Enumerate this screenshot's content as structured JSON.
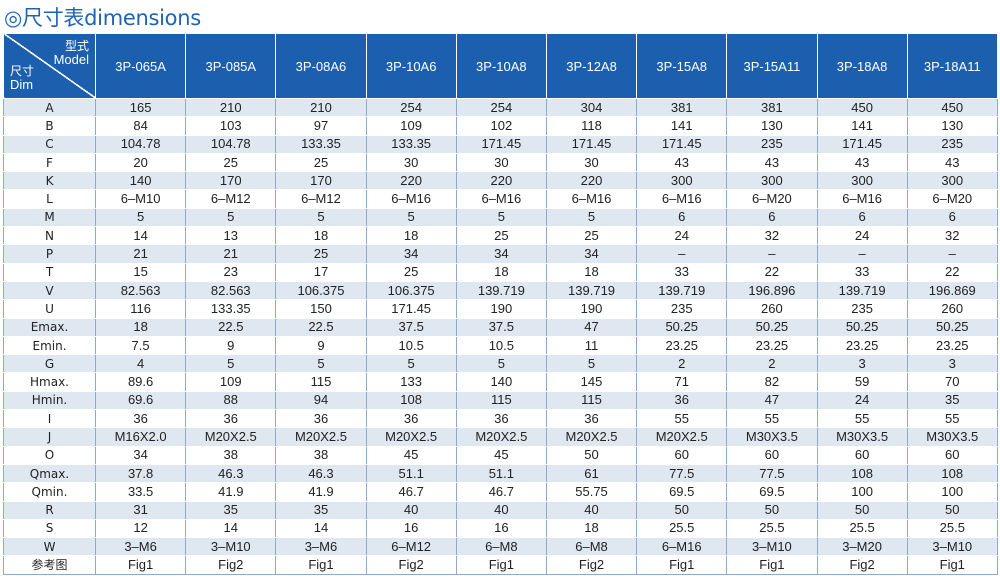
{
  "title": "◎尺寸表dimensions",
  "corner": {
    "model_zh": "型式",
    "model_en": "Model",
    "dim_zh": "尺寸",
    "dim_en": "Dim"
  },
  "models": [
    "3P-065A",
    "3P-085A",
    "3P-08A6",
    "3P-10A6",
    "3P-10A8",
    "3P-12A8",
    "3P-15A8",
    "3P-15A11",
    "3P-18A8",
    "3P-18A11"
  ],
  "rows": [
    {
      "label": "A",
      "values": [
        "165",
        "210",
        "210",
        "254",
        "254",
        "304",
        "381",
        "381",
        "450",
        "450"
      ]
    },
    {
      "label": "B",
      "values": [
        "84",
        "103",
        "97",
        "109",
        "102",
        "118",
        "141",
        "130",
        "141",
        "130"
      ]
    },
    {
      "label": "C",
      "values": [
        "104.78",
        "104.78",
        "133.35",
        "133.35",
        "171.45",
        "171.45",
        "171.45",
        "235",
        "171.45",
        "235"
      ]
    },
    {
      "label": "F",
      "values": [
        "20",
        "25",
        "25",
        "30",
        "30",
        "30",
        "43",
        "43",
        "43",
        "43"
      ]
    },
    {
      "label": "K",
      "values": [
        "140",
        "170",
        "170",
        "220",
        "220",
        "220",
        "300",
        "300",
        "300",
        "300"
      ]
    },
    {
      "label": "L",
      "values": [
        "6–M10",
        "6–M12",
        "6–M12",
        "6–M16",
        "6–M16",
        "6–M16",
        "6–M16",
        "6–M20",
        "6–M16",
        "6–M20"
      ]
    },
    {
      "label": "M",
      "values": [
        "5",
        "5",
        "5",
        "5",
        "5",
        "5",
        "6",
        "6",
        "6",
        "6"
      ]
    },
    {
      "label": "N",
      "values": [
        "14",
        "13",
        "18",
        "18",
        "25",
        "25",
        "24",
        "32",
        "24",
        "32"
      ]
    },
    {
      "label": "P",
      "values": [
        "21",
        "21",
        "25",
        "34",
        "34",
        "34",
        "–",
        "–",
        "–",
        "–"
      ]
    },
    {
      "label": "T",
      "values": [
        "15",
        "23",
        "17",
        "25",
        "18",
        "18",
        "33",
        "22",
        "33",
        "22"
      ]
    },
    {
      "label": "V",
      "values": [
        "82.563",
        "82.563",
        "106.375",
        "106.375",
        "139.719",
        "139.719",
        "139.719",
        "196.896",
        "139.719",
        "196.869"
      ]
    },
    {
      "label": "U",
      "values": [
        "116",
        "133.35",
        "150",
        "171.45",
        "190",
        "190",
        "235",
        "260",
        "235",
        "260"
      ]
    },
    {
      "label": "Emax.",
      "values": [
        "18",
        "22.5",
        "22.5",
        "37.5",
        "37.5",
        "47",
        "50.25",
        "50.25",
        "50.25",
        "50.25"
      ]
    },
    {
      "label": "Emin.",
      "values": [
        "7.5",
        "9",
        "9",
        "10.5",
        "10.5",
        "11",
        "23.25",
        "23.25",
        "23.25",
        "23.25"
      ]
    },
    {
      "label": "G",
      "values": [
        "4",
        "5",
        "5",
        "5",
        "5",
        "5",
        "2",
        "2",
        "3",
        "3"
      ]
    },
    {
      "label": "Hmax.",
      "values": [
        "89.6",
        "109",
        "115",
        "133",
        "140",
        "145",
        "71",
        "82",
        "59",
        "70"
      ]
    },
    {
      "label": "Hmin.",
      "values": [
        "69.6",
        "88",
        "94",
        "108",
        "115",
        "115",
        "36",
        "47",
        "24",
        "35"
      ]
    },
    {
      "label": "I",
      "values": [
        "36",
        "36",
        "36",
        "36",
        "36",
        "36",
        "55",
        "55",
        "55",
        "55"
      ]
    },
    {
      "label": "J",
      "values": [
        "M16X2.0",
        "M20X2.5",
        "M20X2.5",
        "M20X2.5",
        "M20X2.5",
        "M20X2.5",
        "M20X2.5",
        "M30X3.5",
        "M30X3.5",
        "M30X3.5"
      ]
    },
    {
      "label": "O",
      "values": [
        "34",
        "38",
        "38",
        "45",
        "45",
        "50",
        "60",
        "60",
        "60",
        "60"
      ]
    },
    {
      "label": "Qmax.",
      "values": [
        "37.8",
        "46.3",
        "46.3",
        "51.1",
        "51.1",
        "61",
        "77.5",
        "77.5",
        "108",
        "108"
      ]
    },
    {
      "label": "Qmin.",
      "values": [
        "33.5",
        "41.9",
        "41.9",
        "46.7",
        "46.7",
        "55.75",
        "69.5",
        "69.5",
        "100",
        "100"
      ]
    },
    {
      "label": "R",
      "values": [
        "31",
        "35",
        "35",
        "40",
        "40",
        "40",
        "50",
        "50",
        "50",
        "50"
      ]
    },
    {
      "label": "S",
      "values": [
        "12",
        "14",
        "14",
        "16",
        "16",
        "18",
        "25.5",
        "25.5",
        "25.5",
        "25.5"
      ]
    },
    {
      "label": "W",
      "values": [
        "3–M6",
        "3–M10",
        "3–M6",
        "6–M12",
        "6–M8",
        "6–M8",
        "6–M16",
        "3–M10",
        "3–M20",
        "3–M10"
      ]
    },
    {
      "label": "参考图",
      "values": [
        "Fig1",
        "Fig2",
        "Fig1",
        "Fig2",
        "Fig1",
        "Fig2",
        "Fig1",
        "Fig1",
        "Fig2",
        "Fig1"
      ]
    }
  ]
}
